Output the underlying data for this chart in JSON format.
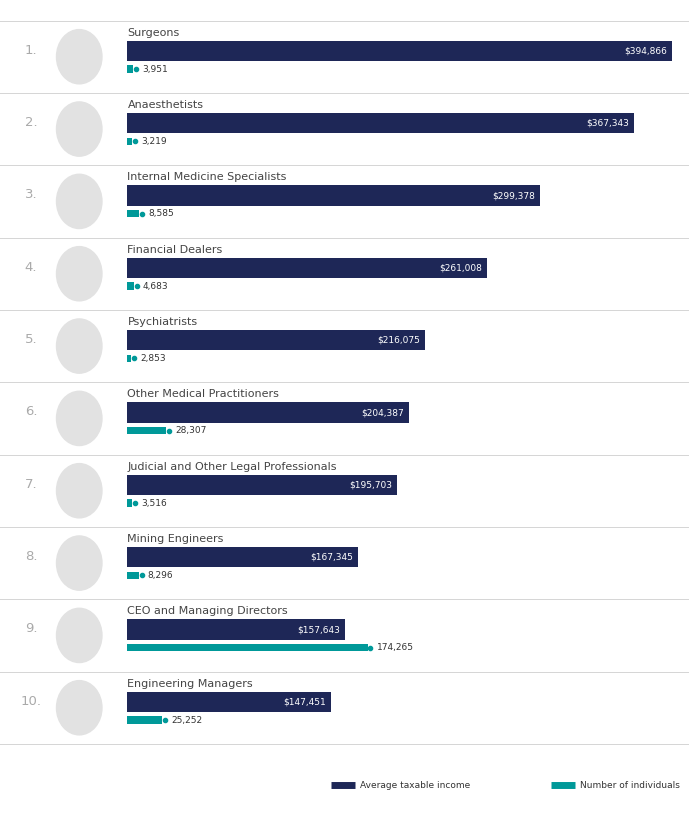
{
  "categories": [
    "Surgeons",
    "Anaesthetists",
    "Internal Medicine Specialists",
    "Financial Dealers",
    "Psychiatrists",
    "Other Medical Practitioners",
    "Judicial and Other Legal Professionals",
    "Mining Engineers",
    "CEO and Managing Directors",
    "Engineering Managers"
  ],
  "income_values": [
    394866,
    367343,
    299378,
    261008,
    216075,
    204387,
    195703,
    167345,
    157643,
    147451
  ],
  "individual_values": [
    3951,
    3219,
    8585,
    4683,
    2853,
    28307,
    3516,
    8296,
    174265,
    25252
  ],
  "income_labels": [
    "$394,866",
    "$367,343",
    "$299,378",
    "$261,008",
    "$216,075",
    "$204,387",
    "$195,703",
    "$167,345",
    "$157,643",
    "$147,451"
  ],
  "individual_labels": [
    "3,951",
    "3,219",
    "8,585",
    "4,683",
    "2,853",
    "28,307",
    "3,516",
    "8,296",
    "174,265",
    "25,252"
  ],
  "max_income": 394866,
  "income_bar_color": "#1e2757",
  "individual_bar_color": "#009999",
  "background_color": "#ffffff",
  "text_color": "#444444",
  "rank_color": "#aaaaaa",
  "separator_color": "#d5d5d5",
  "income_label_color": "#ffffff",
  "individual_label_color": "#333333",
  "legend_income_label": "Average taxable income",
  "legend_individual_label": "Number of individuals"
}
